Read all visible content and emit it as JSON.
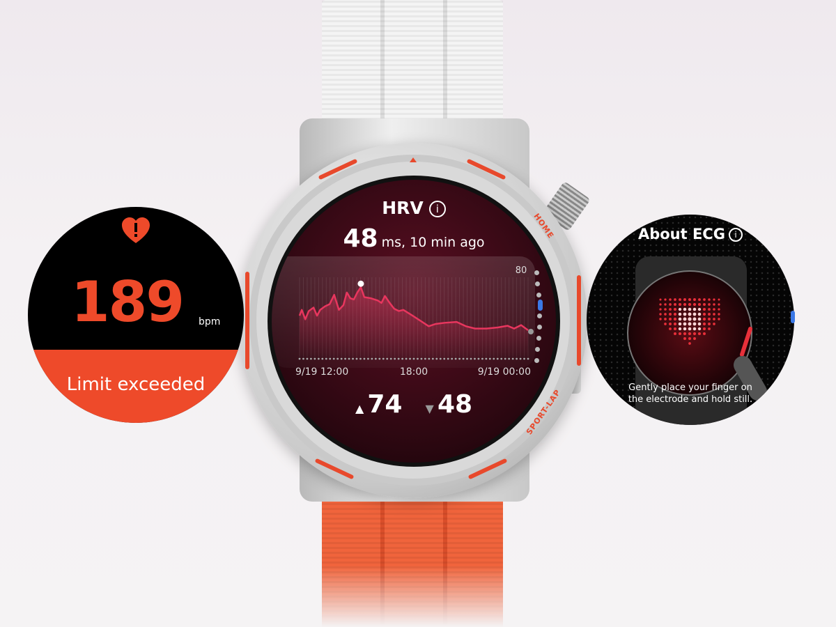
{
  "heart_rate_card": {
    "icon": "heart-alert-icon",
    "value": "189",
    "unit": "bpm",
    "status": "Limit exceeded",
    "accent": "#ee4a2a"
  },
  "watch": {
    "button_labels": {
      "home": "HOME",
      "sport_lap": "SPORT-LAP"
    },
    "screen": {
      "title": "HRV",
      "info_icon": "info-icon",
      "value": "48",
      "value_suffix": "ms, 10 min ago",
      "max": "74",
      "min": "48",
      "up_icon": "triangle-up-icon",
      "down_icon": "triangle-down-icon"
    }
  },
  "chart_data": {
    "type": "area",
    "title": "",
    "xlabel": "",
    "ylabel": "",
    "y_tick_labels": [
      "80"
    ],
    "x_tick_labels": [
      "9/19 12:00",
      "18:00",
      "9/19 00:00"
    ],
    "ylim": [
      32,
      80
    ],
    "grid": true,
    "line_color": "#e8365e",
    "series": [
      {
        "x": [
          "12:00",
          "12:07",
          "12:18",
          "12:29",
          "12:44",
          "12:55",
          "13:05",
          "13:20",
          "13:35",
          "13:49",
          "14:04",
          "14:18",
          "14:29",
          "14:40",
          "14:51",
          "15:02",
          "15:13",
          "15:24",
          "15:45",
          "16:07",
          "16:18",
          "16:29",
          "16:44",
          "16:58",
          "17:13",
          "17:27",
          "17:56",
          "18:25",
          "18:47",
          "19:09",
          "19:38",
          "20:15",
          "20:44",
          "21:13",
          "21:49",
          "22:25",
          "22:55",
          "23:16",
          "23:38",
          "00:00"
        ],
        "y": [
          56.8,
          60.3,
          54.6,
          59.6,
          61.7,
          56.8,
          60.3,
          62.4,
          63.8,
          69.4,
          60.3,
          63.1,
          70.8,
          67.3,
          66.6,
          70.8,
          74,
          68,
          67.3,
          65.9,
          64.5,
          68.7,
          64.5,
          61,
          59.6,
          60.3,
          56.8,
          53.2,
          50.4,
          51.8,
          52.5,
          53,
          50.4,
          49,
          49,
          49.7,
          50.7,
          49,
          51.1,
          48
        ]
      }
    ],
    "highlight": {
      "x": "15:13",
      "y": 74
    }
  },
  "ecg_card": {
    "title": "About ECG",
    "info_icon": "info-icon",
    "instruction": "Gently place your finger on the electrode and hold still."
  }
}
